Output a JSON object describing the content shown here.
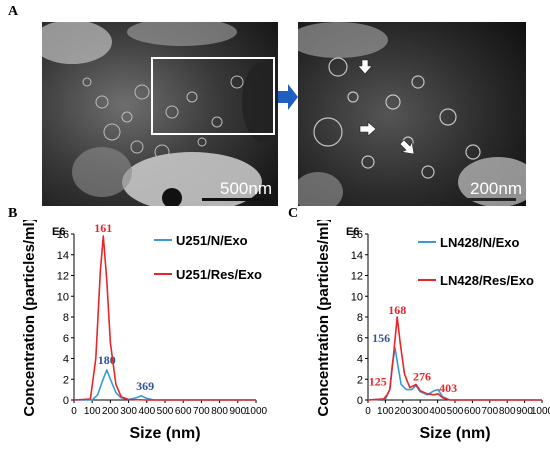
{
  "panels": {
    "a_label": "A",
    "b_label": "B",
    "c_label": "C"
  },
  "micrographs": {
    "left_scale": "500nm",
    "right_scale": "200nm"
  },
  "colors": {
    "n_exo": "#3a9ad9",
    "res_exo": "#e8262a",
    "peak_blue_text": "#2f5597",
    "peak_red_text": "#e8262a",
    "arrow": "#1f5fbf"
  },
  "chart_data": [
    {
      "type": "line",
      "panel": "B",
      "xlabel": "Size (nm)",
      "ylabel": "Concentration (particles/ml)",
      "y_multiplier": "E6",
      "xlim": [
        0,
        1000
      ],
      "ylim": [
        0,
        16
      ],
      "x_ticks": [
        "0",
        "100",
        "200",
        "300",
        "400",
        "500",
        "600",
        "700",
        "800",
        "900",
        "1000"
      ],
      "y_ticks": [
        "0",
        "2",
        "4",
        "6",
        "8",
        "10",
        "12",
        "14",
        "16"
      ],
      "legend_position": "top-right",
      "series": [
        {
          "name": "U251/N/Exo",
          "color": "#3a9ad9",
          "x": [
            0,
            100,
            130,
            160,
            180,
            200,
            230,
            260,
            300,
            340,
            369,
            400,
            440,
            500,
            1000
          ],
          "y": [
            0,
            0,
            0.5,
            2.0,
            2.9,
            2.0,
            0.7,
            0.2,
            0.05,
            0.2,
            0.4,
            0.15,
            0,
            0,
            0
          ]
        },
        {
          "name": "U251/Res/Exo",
          "color": "#e8262a",
          "x": [
            0,
            90,
            120,
            145,
            161,
            180,
            200,
            230,
            260,
            300,
            400,
            500,
            1000
          ],
          "y": [
            0,
            0.1,
            4.0,
            12.5,
            15.8,
            11.5,
            5.5,
            1.5,
            0.3,
            0.05,
            0,
            0,
            0
          ]
        }
      ],
      "annotations": [
        {
          "text": "161",
          "x": 161,
          "y": 15.8,
          "color": "#e8262a"
        },
        {
          "text": "180",
          "x": 180,
          "y": 2.9,
          "color": "#2f5597"
        },
        {
          "text": "369",
          "x": 369,
          "y": 0.4,
          "color": "#2f5597"
        }
      ]
    },
    {
      "type": "line",
      "panel": "C",
      "xlabel": "Size (nm)",
      "ylabel": "Concentration (particles/ml)",
      "y_multiplier": "E6",
      "xlim": [
        0,
        1000
      ],
      "ylim": [
        0,
        16
      ],
      "x_ticks": [
        "0",
        "100",
        "200",
        "300",
        "400",
        "500",
        "600",
        "700",
        "800",
        "900",
        "1000"
      ],
      "y_ticks": [
        "0",
        "2",
        "4",
        "6",
        "8",
        "10",
        "12",
        "14",
        "16"
      ],
      "legend_position": "top-right",
      "series": [
        {
          "name": "LN428/N/Exo",
          "color": "#3a9ad9",
          "x": [
            0,
            100,
            125,
            140,
            156,
            170,
            190,
            220,
            250,
            276,
            300,
            340,
            380,
            403,
            430,
            470,
            1000
          ],
          "y": [
            0,
            0.1,
            1.0,
            3.5,
            5.0,
            3.5,
            1.5,
            1.0,
            1.0,
            1.4,
            0.8,
            0.5,
            0.9,
            1.0,
            0.3,
            0,
            0
          ]
        },
        {
          "name": "LN428/Res/Exo",
          "color": "#e8262a",
          "x": [
            0,
            90,
            110,
            125,
            145,
            168,
            185,
            210,
            240,
            276,
            300,
            340,
            380,
            403,
            430,
            470,
            1000
          ],
          "y": [
            0,
            0.1,
            0.5,
            1.0,
            4.0,
            8.0,
            5.5,
            2.5,
            1.2,
            1.5,
            0.9,
            0.6,
            0.5,
            0.6,
            0.2,
            0,
            0
          ]
        }
      ],
      "annotations": [
        {
          "text": "168",
          "x": 168,
          "y": 8.0,
          "color": "#e8262a"
        },
        {
          "text": "156",
          "x": 156,
          "y": 5.0,
          "color": "#2f5597"
        },
        {
          "text": "125",
          "x": 125,
          "y": 1.0,
          "color": "#e8262a"
        },
        {
          "text": "276",
          "x": 276,
          "y": 1.5,
          "color": "#e8262a"
        },
        {
          "text": "403",
          "x": 403,
          "y": 0.6,
          "color": "#e8262a"
        }
      ]
    }
  ]
}
